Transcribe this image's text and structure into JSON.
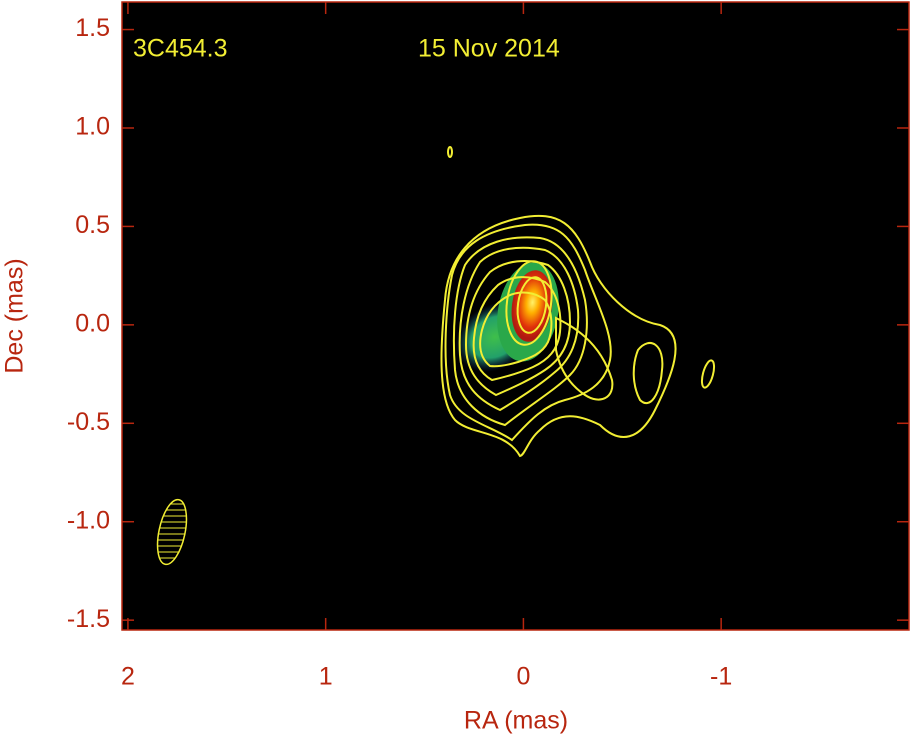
{
  "chart_data": {
    "type": "image",
    "annotations": [
      "3C454.3",
      "15 Nov 2014"
    ],
    "x_label": "RA (mas)",
    "y_label": "Dec (mas)",
    "xlim": [
      2.03,
      -1.95
    ],
    "xticks": [
      2,
      1,
      0,
      -1
    ],
    "ylim": [
      -1.55,
      1.64
    ],
    "yticks": [
      -1.5,
      {
        "value": -1.0,
        "label": "-1.0"
      },
      -0.5,
      {
        "value": 0.0,
        "label": "0.0"
      },
      0.5,
      {
        "value": 1.0,
        "label": "1.0"
      },
      1.5
    ],
    "axis_color": "#b8260f"
  }
}
